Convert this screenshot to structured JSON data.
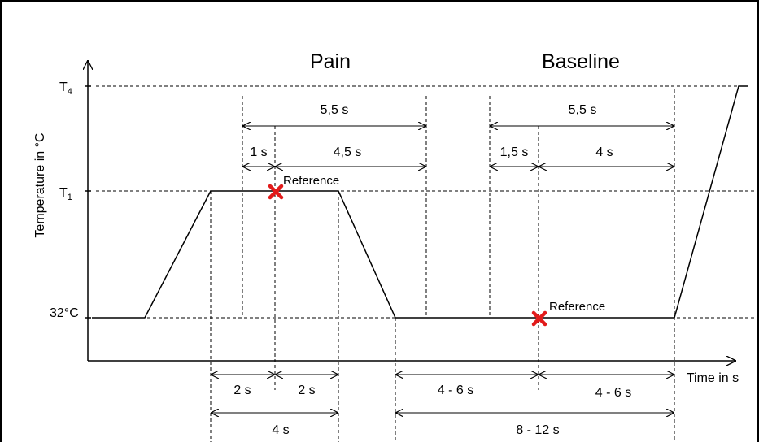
{
  "titles": {
    "pain": "Pain",
    "baseline": "Baseline"
  },
  "y_axis": {
    "label": "Temperature in °C",
    "tick_t4": "T4",
    "tick_t1": "T1",
    "tick_baseline": "32°C"
  },
  "x_axis": {
    "label": "Time in s"
  },
  "durations": {
    "pain_total": "5,5 s",
    "pain_pre": "1 s",
    "pain_post": "4,5 s",
    "base_total": "5,5 s",
    "base_pre": "1,5 s",
    "base_post": "4 s",
    "plateau_half1": "2 s",
    "plateau_half2": "2 s",
    "plateau_total": "4 s",
    "baseline_half1": "4 - 6 s",
    "baseline_half2": "4 - 6 s",
    "baseline_total": "8 - 12 s"
  },
  "markers": {
    "pain_reference": "Reference",
    "baseline_reference": "Reference"
  },
  "colors": {
    "marker": "#e21b1b",
    "line": "#000000"
  }
}
